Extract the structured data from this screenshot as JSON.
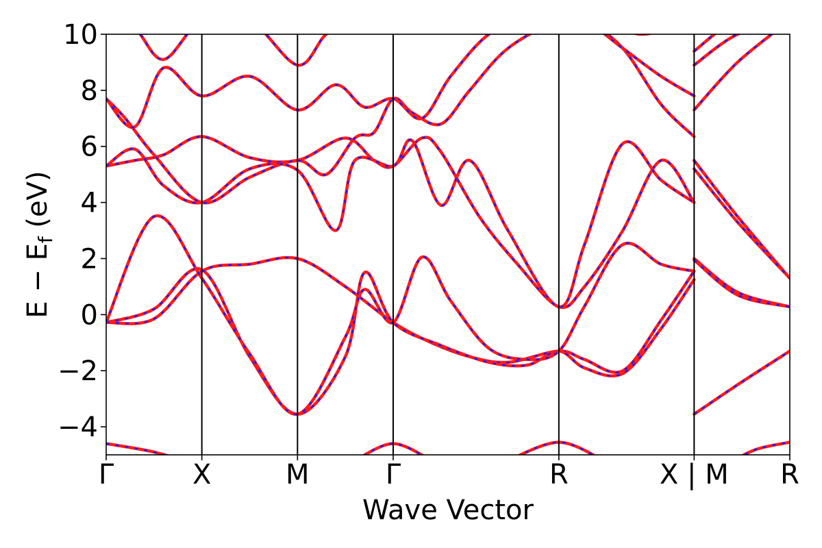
{
  "chart_data": {
    "type": "line",
    "xlabel": "Wave Vector",
    "ylabel_parts": {
      "main": "E − E",
      "sub": "f",
      "unit": " (eV)"
    },
    "ylim": [
      -5,
      10
    ],
    "y_ticks": [
      -4,
      -2,
      0,
      2,
      4,
      6,
      8,
      10
    ],
    "y_tick_labels": [
      "−4",
      "−2",
      "0",
      "2",
      "4",
      "6",
      "8",
      "10"
    ],
    "k_path": {
      "points": [
        0,
        1,
        2,
        3,
        4.732,
        6.146,
        7.146
      ],
      "labels": [
        "Γ",
        "X",
        "M",
        "Γ",
        "R",
        "X | M",
        "R"
      ]
    },
    "grid": false,
    "colors": {
      "band_solid": "#ff1a1a",
      "band_dashed": "#1a1aff"
    },
    "series_styles": [
      "solid red",
      "dashed blue overlay"
    ],
    "bands": [
      {
        "k": [
          0,
          0.5,
          1,
          1.5,
          2,
          2.5,
          3,
          3.4,
          3.8,
          4.2,
          4.732,
          5.0,
          5.4,
          5.8,
          6.146,
          6.146,
          6.6,
          7.146
        ],
        "e": [
          -0.28,
          -0.15,
          1.55,
          1.8,
          2.0,
          1.0,
          -0.28,
          -1.0,
          -1.5,
          -1.7,
          -1.3,
          -1.6,
          -2.0,
          -0.2,
          1.55,
          2.0,
          0.8,
          0.28
        ]
      },
      {
        "k": [
          0,
          0.5,
          1,
          1.5,
          2,
          2.5,
          2.7,
          3,
          3.5,
          4.0,
          4.4,
          4.732,
          5.0,
          5.4,
          5.8,
          6.146,
          6.146,
          6.6,
          7.146
        ],
        "e": [
          -0.28,
          0.2,
          1.6,
          -1.5,
          -3.55,
          -1.5,
          1.5,
          -0.28,
          -1.1,
          -1.7,
          -1.8,
          -1.3,
          -1.9,
          -2.1,
          -0.5,
          1.25,
          -3.55,
          -2.5,
          -1.3
        ]
      },
      {
        "k": [
          0,
          0.5,
          1,
          1.5,
          2,
          2.5,
          2.7,
          3,
          3.3,
          3.6,
          4.0,
          4.4,
          4.732,
          5.0,
          5.4,
          5.8,
          6.146,
          6.146,
          6.6,
          7.146
        ],
        "e": [
          -0.28,
          3.5,
          1.3,
          -1.4,
          -3.55,
          -0.8,
          0.9,
          -0.28,
          2.05,
          0.5,
          -1.2,
          -1.6,
          -1.3,
          0.3,
          2.5,
          1.8,
          1.55,
          1.95,
          0.7,
          0.28
        ]
      },
      {
        "k": [
          0,
          0.3,
          0.6,
          1,
          1.5,
          2,
          2.5,
          2.8,
          3,
          3.3,
          3.5,
          3.9,
          4.3,
          4.732,
          5.0,
          5.4,
          5.8,
          6.146,
          6.146,
          6.6,
          7.146
        ],
        "e": [
          5.3,
          5.5,
          5.7,
          6.35,
          5.6,
          5.5,
          6.3,
          5.5,
          5.3,
          6.3,
          5.8,
          3.5,
          1.8,
          0.28,
          1.0,
          3.0,
          5.5,
          4.0,
          5.5,
          3.5,
          1.3
        ]
      },
      {
        "k": [
          0,
          0.3,
          0.6,
          1,
          1.5,
          2,
          2.4,
          2.6,
          3,
          3.2,
          3.5,
          3.8,
          4.2,
          4.732,
          5.0,
          5.4,
          5.8,
          6.146,
          6.146,
          6.6,
          7.146
        ],
        "e": [
          5.3,
          5.9,
          4.6,
          4.0,
          5.2,
          5.15,
          3.0,
          5.5,
          5.3,
          6.2,
          3.9,
          5.5,
          3.0,
          0.28,
          2.5,
          6.1,
          4.8,
          4.0,
          5.2,
          3.3,
          1.3
        ]
      },
      {
        "k": [
          0,
          0.2,
          0.5,
          1,
          1.5,
          2,
          2.3,
          2.6,
          2.8,
          3,
          3.2,
          3.5,
          3.8,
          4.2,
          4.732,
          5.0,
          5.4,
          5.8,
          6.146,
          6.146,
          6.6,
          7.146
        ],
        "e": [
          7.7,
          7.0,
          5.7,
          4.0,
          4.9,
          5.5,
          5.0,
          6.3,
          6.5,
          7.7,
          7.2,
          6.8,
          8.0,
          9.5,
          10.5,
          10.5,
          9.5,
          7.5,
          6.35,
          7.3,
          9.0,
          10.5
        ]
      },
      {
        "k": [
          0,
          0.3,
          0.6,
          1,
          1.5,
          2,
          2.4,
          2.7,
          3,
          3.3,
          3.6,
          4.0,
          4.4,
          4.732,
          5.0,
          5.4,
          5.8,
          6.146,
          6.146,
          6.6,
          7.146
        ],
        "e": [
          7.7,
          6.7,
          8.8,
          7.8,
          8.5,
          7.3,
          8.2,
          7.4,
          7.7,
          7.0,
          8.5,
          10.0,
          10.5,
          10.5,
          10.5,
          9.5,
          8.5,
          7.8,
          8.9,
          10.0,
          10.5
        ]
      },
      {
        "k": [
          0,
          0.3,
          0.6,
          1,
          1.5,
          2,
          2.3,
          2.6,
          3,
          3.3,
          3.6,
          4.0,
          4.4,
          4.732,
          5.2,
          5.6,
          6.146,
          6.146,
          6.6,
          7.146
        ],
        "e": [
          10.5,
          10.2,
          9.1,
          10.5,
          10.5,
          8.9,
          10.0,
          10.5,
          10.5,
          10.5,
          10.5,
          10.5,
          10.5,
          10.5,
          10.5,
          10.0,
          10.5,
          9.4,
          10.5,
          10.5
        ]
      },
      {
        "k": [
          0,
          0.5,
          1
        ],
        "e": [
          -4.6,
          -4.9,
          -5.4
        ]
      },
      {
        "k": [
          2.6,
          3,
          3.4
        ],
        "e": [
          -5.2,
          -4.6,
          -5.2
        ]
      },
      {
        "k": [
          4.2,
          4.732,
          5.2
        ],
        "e": [
          -5.2,
          -4.55,
          -5.2
        ]
      },
      {
        "k": [
          6.5,
          6.8,
          7.146
        ],
        "e": [
          -5.3,
          -4.8,
          -4.55
        ]
      }
    ]
  }
}
